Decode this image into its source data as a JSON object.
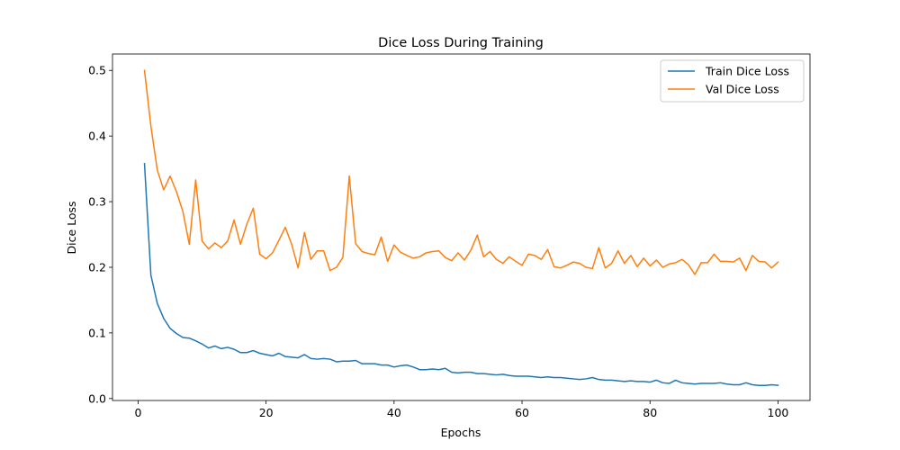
{
  "chart_data": {
    "type": "line",
    "title": "Dice Loss During Training",
    "xlabel": "Epochs",
    "ylabel": "Dice Loss",
    "xlim": [
      -4,
      105
    ],
    "ylim": [
      -0.003,
      0.525
    ],
    "xticks": [
      0,
      20,
      40,
      60,
      80,
      100
    ],
    "yticks": [
      0.0,
      0.1,
      0.2,
      0.3,
      0.4,
      0.5
    ],
    "grid": false,
    "legend_position": "top-right",
    "x": [
      1,
      2,
      3,
      4,
      5,
      6,
      7,
      8,
      9,
      10,
      11,
      12,
      13,
      14,
      15,
      16,
      17,
      18,
      19,
      20,
      21,
      22,
      23,
      24,
      25,
      26,
      27,
      28,
      29,
      30,
      31,
      32,
      33,
      34,
      35,
      36,
      37,
      38,
      39,
      40,
      41,
      42,
      43,
      44,
      45,
      46,
      47,
      48,
      49,
      50,
      51,
      52,
      53,
      54,
      55,
      56,
      57,
      58,
      59,
      60,
      61,
      62,
      63,
      64,
      65,
      66,
      67,
      68,
      69,
      70,
      71,
      72,
      73,
      74,
      75,
      76,
      77,
      78,
      79,
      80,
      81,
      82,
      83,
      84,
      85,
      86,
      87,
      88,
      89,
      90,
      91,
      92,
      93,
      94,
      95,
      96,
      97,
      98,
      99,
      100
    ],
    "series": [
      {
        "name": "Train Dice Loss",
        "color": "#1f77b4",
        "values": [
          0.358,
          0.188,
          0.145,
          0.122,
          0.107,
          0.099,
          0.093,
          0.092,
          0.088,
          0.083,
          0.077,
          0.08,
          0.076,
          0.078,
          0.075,
          0.07,
          0.07,
          0.073,
          0.069,
          0.067,
          0.065,
          0.069,
          0.064,
          0.063,
          0.062,
          0.067,
          0.061,
          0.06,
          0.061,
          0.06,
          0.056,
          0.057,
          0.057,
          0.058,
          0.053,
          0.053,
          0.053,
          0.051,
          0.051,
          0.048,
          0.05,
          0.051,
          0.048,
          0.044,
          0.044,
          0.045,
          0.044,
          0.046,
          0.04,
          0.039,
          0.04,
          0.04,
          0.038,
          0.038,
          0.037,
          0.036,
          0.037,
          0.035,
          0.034,
          0.034,
          0.034,
          0.033,
          0.032,
          0.033,
          0.032,
          0.032,
          0.031,
          0.03,
          0.029,
          0.03,
          0.032,
          0.029,
          0.028,
          0.028,
          0.027,
          0.026,
          0.027,
          0.026,
          0.026,
          0.025,
          0.028,
          0.024,
          0.023,
          0.028,
          0.024,
          0.023,
          0.022,
          0.023,
          0.023,
          0.023,
          0.024,
          0.022,
          0.021,
          0.021,
          0.024,
          0.021,
          0.02,
          0.02,
          0.021,
          0.02
        ]
      },
      {
        "name": "Val Dice Loss",
        "color": "#ff7f0e",
        "values": [
          0.5,
          0.415,
          0.348,
          0.318,
          0.339,
          0.315,
          0.285,
          0.235,
          0.333,
          0.24,
          0.228,
          0.237,
          0.23,
          0.24,
          0.272,
          0.235,
          0.266,
          0.29,
          0.22,
          0.213,
          0.222,
          0.241,
          0.261,
          0.235,
          0.199,
          0.253,
          0.212,
          0.225,
          0.225,
          0.195,
          0.2,
          0.215,
          0.339,
          0.236,
          0.224,
          0.221,
          0.219,
          0.246,
          0.209,
          0.234,
          0.223,
          0.218,
          0.214,
          0.216,
          0.222,
          0.224,
          0.225,
          0.215,
          0.21,
          0.222,
          0.211,
          0.226,
          0.249,
          0.216,
          0.224,
          0.212,
          0.206,
          0.216,
          0.209,
          0.203,
          0.22,
          0.218,
          0.212,
          0.227,
          0.201,
          0.199,
          0.203,
          0.208,
          0.206,
          0.2,
          0.198,
          0.23,
          0.199,
          0.206,
          0.225,
          0.206,
          0.218,
          0.201,
          0.214,
          0.202,
          0.211,
          0.2,
          0.205,
          0.207,
          0.212,
          0.204,
          0.189,
          0.207,
          0.207,
          0.22,
          0.209,
          0.209,
          0.208,
          0.214,
          0.195,
          0.218,
          0.209,
          0.208,
          0.199,
          0.208
        ]
      }
    ]
  }
}
